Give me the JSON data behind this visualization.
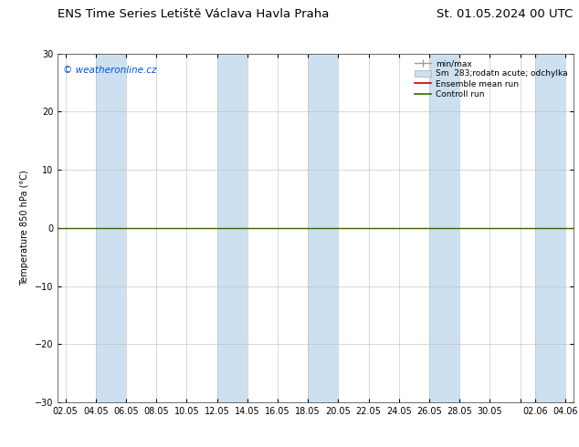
{
  "title_left": "ENS Time Series Letiště Václava Havla Praha",
  "title_right": "St. 01.05.2024 00 UTC",
  "ylabel": "Temperature 850 hPa (°C)",
  "watermark": "© weatheronline.cz",
  "ylim": [
    -30,
    30
  ],
  "yticks": [
    -30,
    -20,
    -10,
    0,
    10,
    20,
    30
  ],
  "xtick_labels": [
    "02.05",
    "04.05",
    "06.05",
    "08.05",
    "10.05",
    "12.05",
    "14.05",
    "16.05",
    "18.05",
    "20.05",
    "22.05",
    "24.05",
    "26.05",
    "28.05",
    "30.05",
    "",
    "02.06",
    "04.06"
  ],
  "shaded_color": "#cce0f0",
  "hline_y": 0,
  "hline_color": "#336600",
  "ensemble_mean_color": "#cc0000",
  "control_run_color": "#336600",
  "minmax_color": "#999999",
  "spread_color": "#cce0f0",
  "legend_labels": [
    "min/max",
    "Sm  283;rodatn acute; odchylka",
    "Ensemble mean run",
    "Controll run"
  ],
  "background_color": "#ffffff",
  "plot_bg_color": "#ffffff",
  "title_fontsize": 9.5,
  "tick_fontsize": 7,
  "watermark_color": "#0055cc",
  "watermark_fontsize": 7.5
}
